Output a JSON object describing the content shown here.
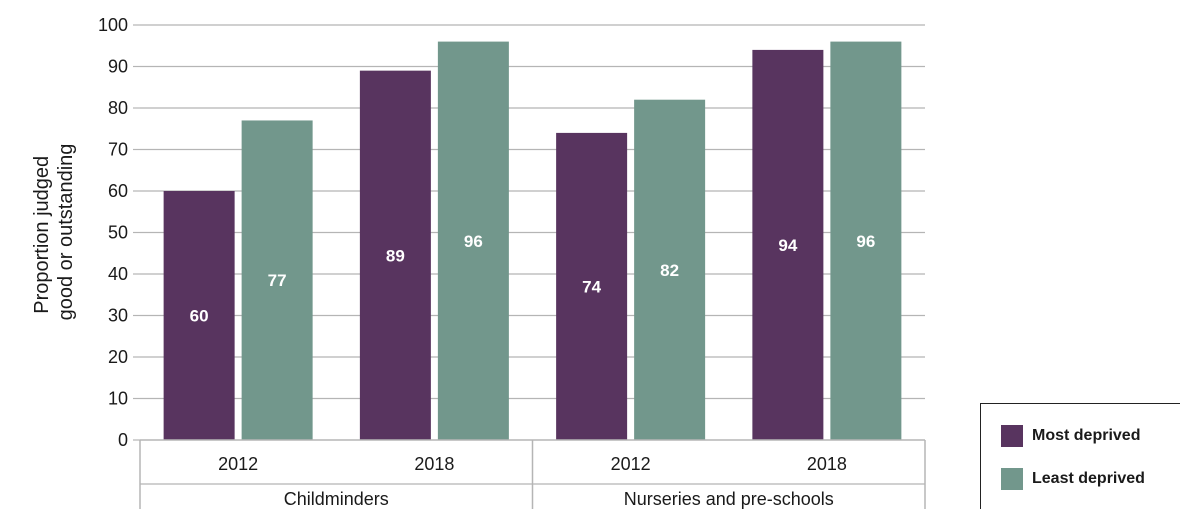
{
  "chart_data": {
    "type": "bar",
    "ylabel": [
      "Proportion judged",
      "good or outstanding"
    ],
    "ylim": [
      0,
      100
    ],
    "yticks": [
      0,
      10,
      20,
      30,
      40,
      50,
      60,
      70,
      80,
      90,
      100
    ],
    "grid": true,
    "groups": [
      {
        "label": "Childminders",
        "categories": [
          "2012",
          "2018"
        ]
      },
      {
        "label": "Nurseries and pre-schools",
        "categories": [
          "2012",
          "2018"
        ]
      }
    ],
    "categories": [
      "2012",
      "2018",
      "2012",
      "2018"
    ],
    "series": [
      {
        "name": "Most deprived",
        "color": "#58345f",
        "values": [
          60,
          89,
          74,
          94
        ]
      },
      {
        "name": "Least deprived",
        "color": "#72978c",
        "values": [
          77,
          96,
          82,
          96
        ]
      }
    ],
    "legend_position": "bottom-right"
  }
}
